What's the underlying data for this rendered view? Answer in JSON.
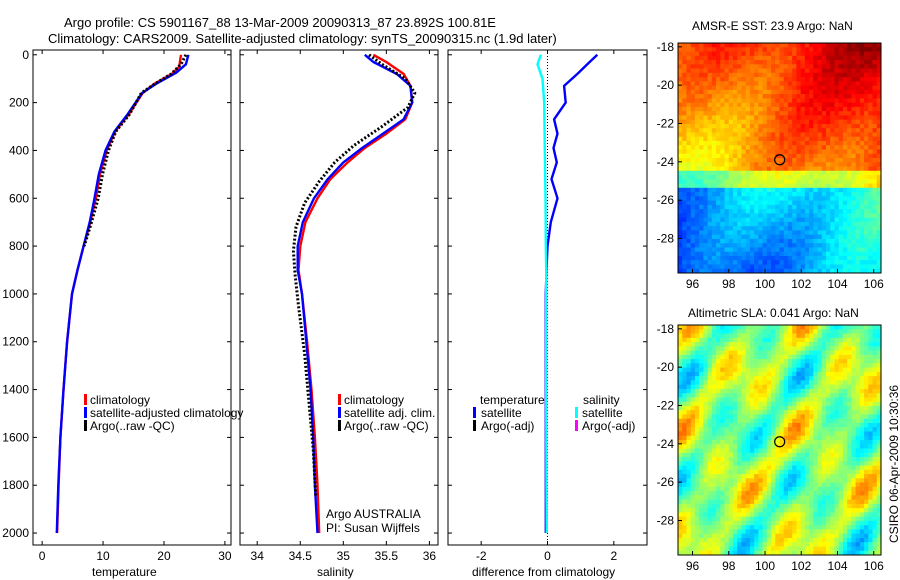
{
  "figure": {
    "title_line1": "Argo profile: CS 5901167_88 13-Mar-2009 20090313_87 23.892S 100.81E",
    "title_line2": "Climatology: CARS2009. Satellite-adjusted climatology: synTS_20090315.nc (1.9d later)",
    "credit": "CSIRO 06-Apr-2009 10:30:36",
    "float_info_line1": "Argo AUSTRALIA",
    "float_info_line2": "PI: Susan Wijffels"
  },
  "colors": {
    "climatology": "#ff0000",
    "satellite": "#0000ff",
    "argo": "#000000",
    "diff_salinity_satellite": "#00ffff",
    "diff_salinity_argo": "#ff00ff"
  },
  "chart_data": [
    {
      "id": "temperature",
      "type": "line",
      "xlabel": "temperature",
      "ylabel": "",
      "xlim": [
        -1.5,
        31
      ],
      "ylim": [
        2050,
        -20
      ],
      "y_inverted": true,
      "xticks": [
        0,
        10,
        20,
        30
      ],
      "yticks": [
        0,
        200,
        400,
        600,
        800,
        1000,
        1200,
        1400,
        1600,
        1800,
        2000
      ],
      "legend": {
        "position": "lower-right",
        "entries": [
          "climatology",
          "satellite-adjusted climatology",
          "Argo(..raw -QC)"
        ]
      },
      "series": [
        {
          "name": "climatology",
          "color": "#ff0000",
          "style": "solid",
          "x": [
            22.8,
            22.5,
            21.3,
            18.5,
            16.5,
            14.2,
            12.0,
            10.6,
            9.5,
            8.8,
            7.9,
            6.8,
            5.8,
            4.9,
            4.1,
            3.5,
            3.0,
            2.7,
            2.45
          ],
          "y": [
            0,
            50,
            80,
            120,
            160,
            250,
            320,
            400,
            500,
            600,
            700,
            800,
            900,
            1000,
            1200,
            1400,
            1600,
            1800,
            2000
          ]
        },
        {
          "name": "satellite-adjusted climatology",
          "color": "#0000ff",
          "style": "solid",
          "x": [
            24.0,
            23.6,
            22.0,
            18.8,
            16.4,
            14.0,
            11.9,
            10.4,
            9.3,
            8.6,
            7.8,
            6.8,
            5.8,
            4.9,
            4.1,
            3.5,
            3.0,
            2.65,
            2.4
          ],
          "y": [
            0,
            40,
            75,
            120,
            160,
            250,
            320,
            400,
            500,
            600,
            700,
            800,
            900,
            1000,
            1200,
            1400,
            1600,
            1800,
            2000
          ]
        },
        {
          "name": "Argo(..raw -QC)",
          "color": "#000000",
          "style": "dotted",
          "x": [
            23.6,
            22.8,
            21.2,
            18.6,
            16.3,
            14.3,
            12.1,
            10.9,
            9.9,
            9.2,
            8.1,
            6.9
          ],
          "y": [
            0,
            40,
            80,
            120,
            160,
            250,
            320,
            400,
            500,
            600,
            700,
            800
          ]
        }
      ]
    },
    {
      "id": "salinity",
      "type": "line",
      "xlabel": "salinity",
      "ylabel": "",
      "xlim": [
        33.8,
        36.1
      ],
      "ylim": [
        2050,
        -20
      ],
      "y_inverted": true,
      "xticks": [
        34,
        34.5,
        35,
        35.5,
        36
      ],
      "yticks": [
        0,
        200,
        400,
        600,
        800,
        1000,
        1200,
        1400,
        1600,
        1800,
        2000
      ],
      "legend": {
        "position": "lower-right",
        "entries": [
          "climatology",
          "satellite adj. clim.",
          "Argo(..raw -QC)"
        ]
      },
      "series": [
        {
          "name": "climatology",
          "color": "#ff0000",
          "style": "solid",
          "x": [
            35.35,
            35.5,
            35.7,
            35.78,
            35.8,
            35.72,
            35.5,
            35.25,
            35.05,
            34.85,
            34.7,
            34.56,
            34.5,
            34.48,
            34.52,
            34.58,
            34.63,
            34.67,
            34.7,
            34.72
          ],
          "y": [
            0,
            30,
            80,
            130,
            200,
            270,
            330,
            390,
            450,
            520,
            600,
            700,
            800,
            900,
            1000,
            1200,
            1400,
            1600,
            1800,
            2000
          ]
        },
        {
          "name": "satellite adj. clim.",
          "color": "#0000ff",
          "style": "solid",
          "x": [
            35.25,
            35.35,
            35.62,
            35.78,
            35.8,
            35.7,
            35.46,
            35.22,
            35.0,
            34.82,
            34.66,
            34.53,
            34.47,
            34.47,
            34.52,
            34.57,
            34.62,
            34.65,
            34.67,
            34.7
          ],
          "y": [
            0,
            30,
            80,
            130,
            200,
            270,
            330,
            390,
            450,
            520,
            600,
            700,
            800,
            900,
            1000,
            1200,
            1400,
            1600,
            1800,
            2000
          ]
        },
        {
          "name": "Argo(..raw -QC)",
          "color": "#000000",
          "style": "dotted",
          "x": [
            35.3,
            35.45,
            35.72,
            35.83,
            35.75,
            35.45,
            35.12,
            34.9,
            34.72,
            34.55,
            34.45,
            34.42,
            34.44,
            34.48,
            34.55,
            34.6,
            34.65,
            34.68
          ],
          "y": [
            0,
            40,
            100,
            160,
            220,
            300,
            380,
            450,
            530,
            620,
            720,
            820,
            920,
            1050,
            1250,
            1450,
            1650,
            1850
          ]
        }
      ]
    },
    {
      "id": "difference",
      "type": "line",
      "xlabel": "difference from climatology",
      "ylabel": "",
      "xlim": [
        -3,
        3
      ],
      "ylim": [
        2050,
        -20
      ],
      "y_inverted": true,
      "xticks": [
        -2,
        0,
        2
      ],
      "yticks": [
        0,
        200,
        400,
        600,
        800,
        1000,
        1200,
        1400,
        1600,
        1800,
        2000
      ],
      "legend": {
        "position": "lower-center",
        "headers": [
          "temperature",
          "salinity"
        ],
        "entries": [
          "satellite",
          "Argo(-adj)",
          "satellite",
          "Argo(-adj)"
        ]
      },
      "series": [
        {
          "name": "temperature satellite",
          "color": "#0000ff",
          "style": "solid",
          "x": [
            1.5,
            1.2,
            0.9,
            0.5,
            0.55,
            0.2,
            0.3,
            0.18,
            0.28,
            0.12,
            0.3,
            0.1,
            0.0,
            -0.03,
            -0.05,
            -0.05,
            -0.05,
            -0.05
          ],
          "y": [
            0,
            40,
            80,
            130,
            200,
            270,
            330,
            390,
            450,
            520,
            600,
            700,
            800,
            900,
            1000,
            1400,
            1800,
            2000
          ]
        },
        {
          "name": "salinity satellite",
          "color": "#00ffff",
          "style": "solid",
          "x": [
            -0.2,
            -0.3,
            -0.15,
            -0.1,
            -0.08,
            -0.06,
            -0.05,
            -0.04,
            -0.04,
            -0.04,
            -0.03,
            -0.02
          ],
          "y": [
            0,
            40,
            100,
            200,
            400,
            600,
            800,
            900,
            1000,
            1400,
            1800,
            2000
          ]
        }
      ]
    },
    {
      "id": "sst_map",
      "type": "heatmap",
      "title": "AMSR-E SST: 23.9 Argo: NaN",
      "xlabel": "",
      "ylabel": "",
      "xlim": [
        95.2,
        106.4
      ],
      "ylim": [
        -29.8,
        -17.8
      ],
      "xticks": [
        96,
        98,
        100,
        102,
        104,
        106
      ],
      "yticks": [
        -18,
        -20,
        -22,
        -24,
        -26,
        -28
      ],
      "value": 23.9,
      "marker": {
        "lon": 100.81,
        "lat": -23.892
      },
      "colormap": "jet",
      "value_range": "SST decreasing from north-east (warm, red) to south (cool, green/cyan)"
    },
    {
      "id": "sla_map",
      "type": "heatmap",
      "title": "Altimetric SLA: 0.041 Argo: NaN",
      "xlabel": "",
      "ylabel": "",
      "xlim": [
        95.2,
        106.4
      ],
      "ylim": [
        -29.8,
        -17.8
      ],
      "xticks": [
        96,
        98,
        100,
        102,
        104,
        106
      ],
      "yticks": [
        -18,
        -20,
        -22,
        -24,
        -26,
        -28
      ],
      "value": 0.041,
      "marker": {
        "lon": 100.81,
        "lat": -23.892
      },
      "colormap": "jet",
      "value_range": "patchy eddies of yellow and green with orange highs"
    }
  ]
}
